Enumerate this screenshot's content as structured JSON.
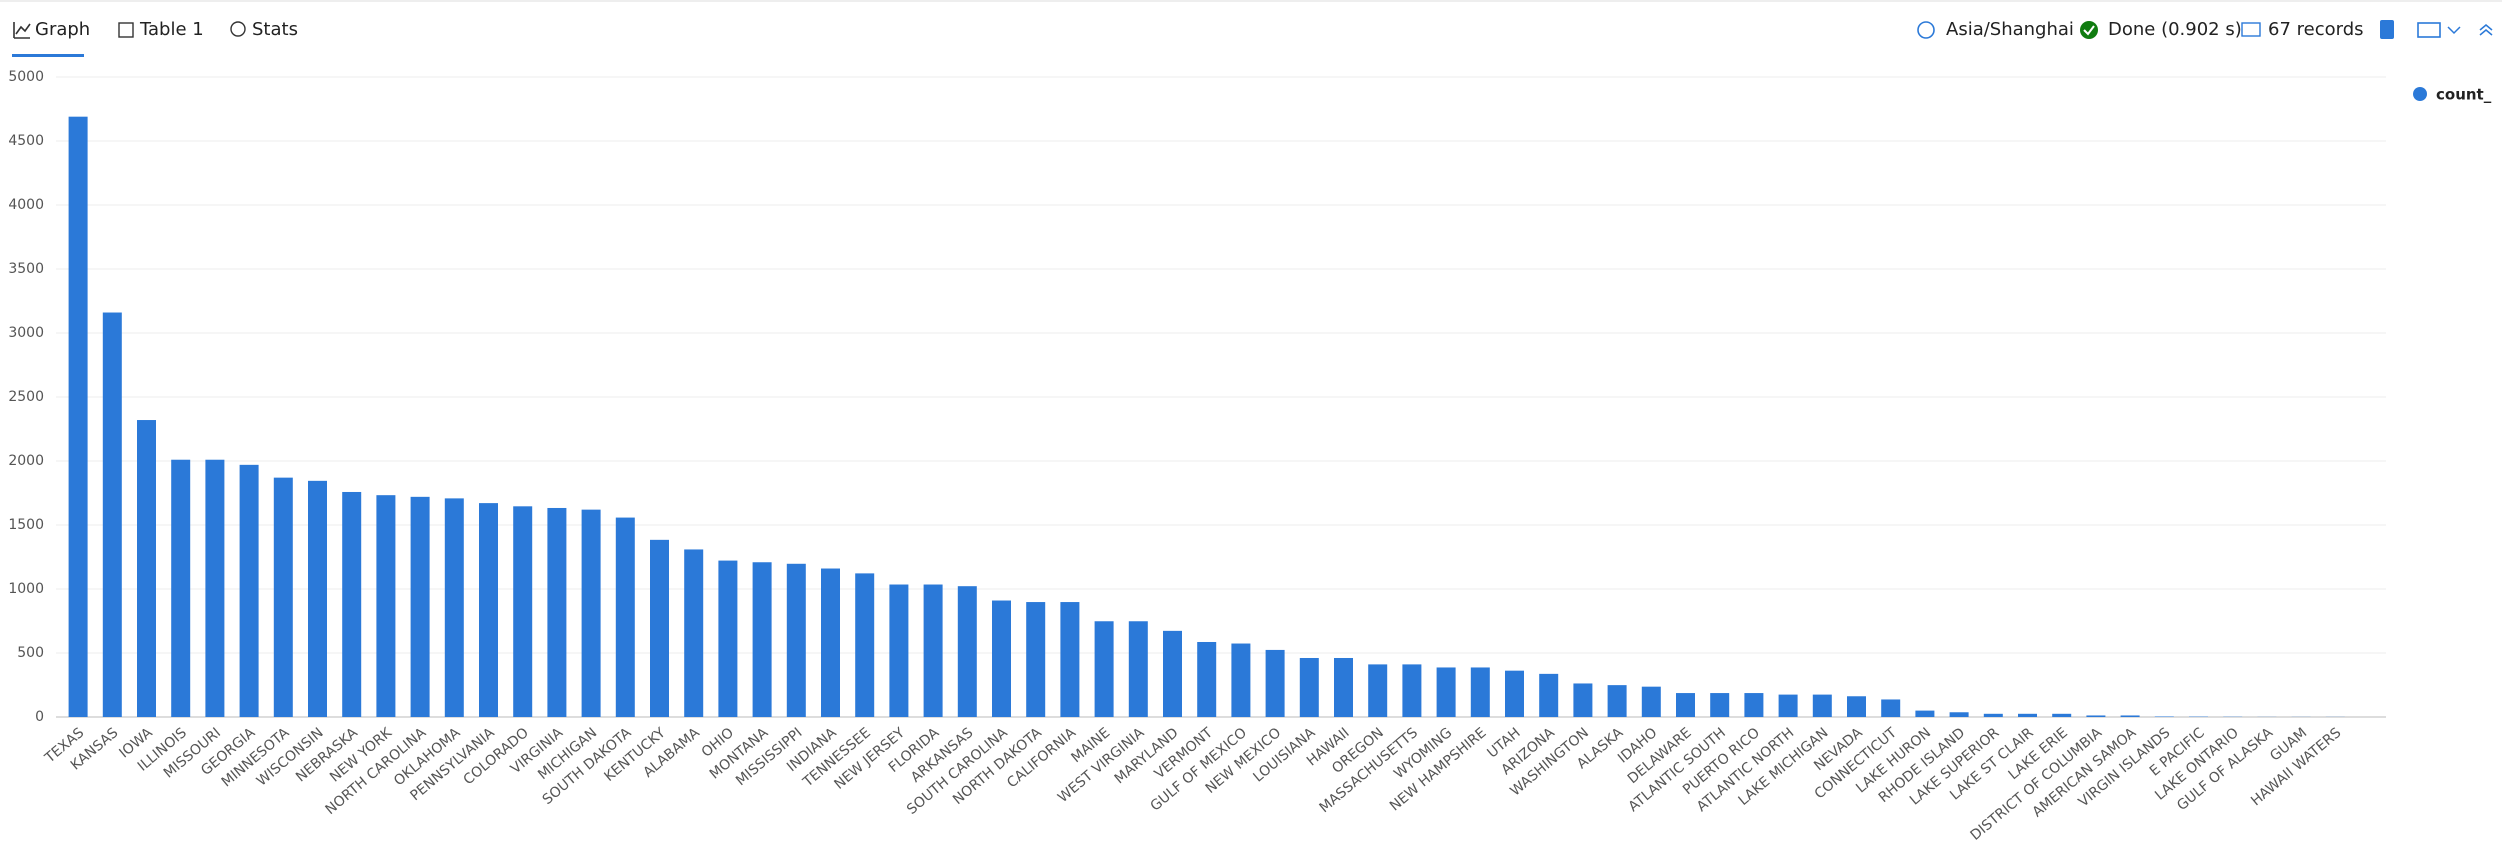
{
  "header": {
    "tabs": [
      "Graph",
      "Table 1",
      "Stats"
    ],
    "timezone": "Asia/Shanghai",
    "status": "Done (0.902 s)",
    "records": "67 records"
  },
  "chart_data": {
    "type": "bar",
    "categories": [
      "TEXAS",
      "KANSAS",
      "IOWA",
      "ILLINOIS",
      "MISSOURI",
      "GEORGIA",
      "MINNESOTA",
      "WISCONSIN",
      "NEBRASKA",
      "NEW YORK",
      "NORTH CAROLINA",
      "OKLAHOMA",
      "PENNSYLVANIA",
      "COLORADO",
      "VIRGINIA",
      "MICHIGAN",
      "SOUTH DAKOTA",
      "KENTUCKY",
      "ALABAMA",
      "OHIO",
      "MONTANA",
      "MISSISSIPPI",
      "INDIANA",
      "TENNESSEE",
      "NEW JERSEY",
      "FLORIDA",
      "ARKANSAS",
      "SOUTH CAROLINA",
      "NORTH DAKOTA",
      "CALIFORNIA",
      "MAINE",
      "WEST VIRGINIA",
      "MARYLAND",
      "VERMONT",
      "GULF OF MEXICO",
      "NEW MEXICO",
      "LOUISIANA",
      "HAWAII",
      "OREGON",
      "MASSACHUSETTS",
      "WYOMING",
      "NEW HAMPSHIRE",
      "UTAH",
      "ARIZONA",
      "WASHINGTON",
      "ALASKA",
      "IDAHO",
      "DELAWARE",
      "ATLANTIC SOUTH",
      "PUERTO RICO",
      "ATLANTIC NORTH",
      "LAKE MICHIGAN",
      "NEVADA",
      "CONNECTICUT",
      "LAKE HURON",
      "RHODE ISLAND",
      "LAKE SUPERIOR",
      "LAKE ST CLAIR",
      "LAKE ERIE",
      "DISTRICT OF COLUMBIA",
      "AMERICAN SAMOA",
      "VIRGIN ISLANDS",
      "E PACIFIC",
      "LAKE ONTARIO",
      "GULF OF ALASKA",
      "GUAM",
      "HAWAII WATERS"
    ],
    "series": [
      {
        "name": "count_",
        "color": "#2b79d8",
        "values": [
          4690,
          3160,
          2320,
          2010,
          2010,
          1970,
          1870,
          1845,
          1758,
          1733,
          1720,
          1708,
          1671,
          1646,
          1633,
          1620,
          1558,
          1384,
          1309,
          1222,
          1209,
          1197,
          1160,
          1122,
          1035,
          1035,
          1022,
          910,
          898,
          898,
          748,
          748,
          673,
          586,
          574,
          524,
          461,
          461,
          411,
          411,
          387,
          387,
          362,
          337,
          262,
          249,
          237,
          187,
          187,
          187,
          175,
          175,
          162,
          137,
          50,
          37,
          25,
          25,
          25,
          12,
          12,
          4,
          3,
          2,
          1,
          1,
          1
        ]
      }
    ],
    "ylim": [
      0,
      5000
    ],
    "yticks": [
      0,
      500,
      1000,
      1500,
      2000,
      2500,
      3000,
      3500,
      4000,
      4500,
      5000
    ],
    "grid": true,
    "legend": "right"
  }
}
